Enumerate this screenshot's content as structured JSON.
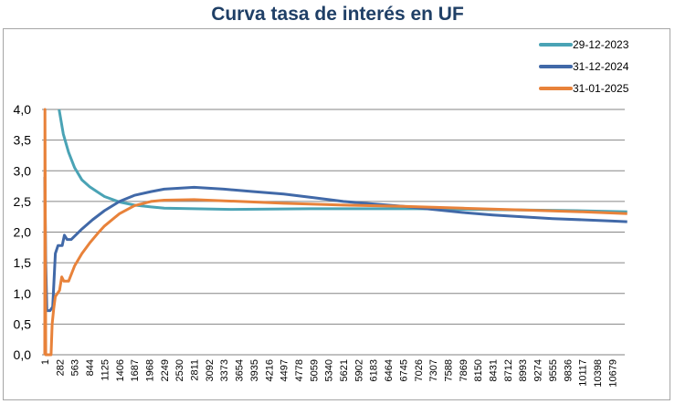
{
  "chart_data": {
    "type": "line",
    "title": "Curva tasa de interés en UF",
    "xlabel": "",
    "ylabel": "",
    "ylim": [
      0,
      4
    ],
    "xlim": [
      1,
      10960
    ],
    "yticks": [
      "0,0",
      "0,5",
      "1,0",
      "1,5",
      "2,0",
      "2,5",
      "3,0",
      "3,5",
      "4,0"
    ],
    "xticks": [
      "1",
      "282",
      "563",
      "844",
      "1125",
      "1406",
      "1687",
      "1968",
      "2249",
      "2530",
      "2811",
      "3092",
      "3373",
      "3654",
      "3935",
      "4216",
      "4497",
      "4778",
      "5059",
      "5340",
      "5621",
      "5902",
      "6183",
      "6464",
      "6745",
      "7026",
      "7307",
      "7588",
      "7869",
      "8150",
      "8431",
      "8712",
      "8993",
      "9274",
      "9555",
      "9836",
      "10117",
      "10398",
      "10679"
    ],
    "grid": true,
    "legend_position": "top-right",
    "series": [
      {
        "name": "29-12-2023",
        "color": "#4aa3b5",
        "x": [
          270,
          350,
          450,
          563,
          700,
          844,
          1000,
          1125,
          1406,
          1687,
          2000,
          2249,
          2811,
          3500,
          5000,
          6000,
          7026,
          8000,
          9000,
          10000,
          10960
        ],
        "y": [
          4.0,
          3.6,
          3.3,
          3.05,
          2.85,
          2.74,
          2.65,
          2.58,
          2.49,
          2.44,
          2.41,
          2.39,
          2.38,
          2.37,
          2.38,
          2.38,
          2.38,
          2.37,
          2.36,
          2.35,
          2.33
        ]
      },
      {
        "name": "31-12-2024",
        "color": "#4169a8",
        "x": [
          1,
          20,
          40,
          100,
          150,
          200,
          250,
          330,
          370,
          420,
          500,
          700,
          900,
          1125,
          1406,
          1687,
          2000,
          2249,
          2811,
          3373,
          3935,
          4497,
          5059,
          5621,
          6183,
          6745,
          7307,
          7869,
          8431,
          8993,
          9555,
          10117,
          10679,
          10960
        ],
        "y": [
          2.9,
          1.5,
          0.72,
          0.72,
          0.78,
          1.65,
          1.78,
          1.78,
          1.95,
          1.88,
          1.88,
          2.05,
          2.2,
          2.35,
          2.5,
          2.6,
          2.66,
          2.7,
          2.73,
          2.7,
          2.66,
          2.62,
          2.56,
          2.5,
          2.46,
          2.42,
          2.37,
          2.32,
          2.28,
          2.25,
          2.22,
          2.2,
          2.18,
          2.17
        ]
      },
      {
        "name": "31-01-2025",
        "color": "#e8823a",
        "x": [
          1,
          5,
          20,
          120,
          140,
          170,
          200,
          280,
          320,
          360,
          450,
          563,
          700,
          844,
          1000,
          1125,
          1406,
          1687,
          2000,
          2249,
          2811,
          3373,
          3935,
          4497,
          5621,
          6745,
          7869,
          8993,
          10117,
          10960
        ],
        "y": [
          0,
          4.0,
          0,
          0,
          0.5,
          0.75,
          0.95,
          1.05,
          1.27,
          1.2,
          1.2,
          1.45,
          1.65,
          1.82,
          1.98,
          2.1,
          2.3,
          2.43,
          2.5,
          2.52,
          2.53,
          2.51,
          2.49,
          2.47,
          2.44,
          2.42,
          2.39,
          2.36,
          2.33,
          2.3
        ]
      }
    ]
  }
}
